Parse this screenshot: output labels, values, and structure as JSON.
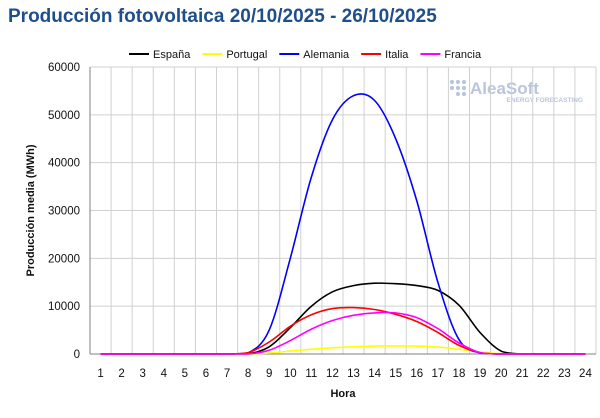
{
  "title": "Producción fotovoltaica 20/10/2025 - 26/10/2025",
  "logo": {
    "name": "AleaSoft",
    "tagline": "ENERGY FORECASTING"
  },
  "chart_data": {
    "type": "line",
    "title": "Producción fotovoltaica 20/10/2025 - 26/10/2025",
    "xlabel": "Hora",
    "ylabel": "Producción media (MWh)",
    "x": [
      1,
      2,
      3,
      4,
      5,
      6,
      7,
      8,
      9,
      10,
      11,
      12,
      13,
      14,
      15,
      16,
      17,
      18,
      19,
      20,
      21,
      22,
      23,
      24
    ],
    "ylim": [
      0,
      60000
    ],
    "yticks": [
      0,
      10000,
      20000,
      30000,
      40000,
      50000,
      60000
    ],
    "grid": true,
    "legend_position": "top",
    "series": [
      {
        "name": "España",
        "color": "#000000",
        "values": [
          0,
          0,
          0,
          0,
          0,
          0,
          0,
          50,
          1500,
          5500,
          10000,
          13000,
          14300,
          14800,
          14700,
          14300,
          13300,
          10200,
          4500,
          600,
          0,
          0,
          0,
          0
        ]
      },
      {
        "name": "Portugal",
        "color": "#ffff00",
        "values": [
          0,
          0,
          0,
          0,
          0,
          0,
          0,
          0,
          200,
          600,
          1000,
          1300,
          1500,
          1650,
          1700,
          1650,
          1450,
          1000,
          400,
          50,
          0,
          0,
          0,
          0
        ]
      },
      {
        "name": "Alemania",
        "color": "#0000ff",
        "values": [
          0,
          0,
          0,
          0,
          0,
          0,
          0,
          200,
          5000,
          20000,
          37000,
          49000,
          54000,
          53000,
          45000,
          32000,
          15000,
          3000,
          200,
          0,
          0,
          0,
          0,
          0
        ]
      },
      {
        "name": "Italia",
        "color": "#ff0000",
        "values": [
          0,
          0,
          0,
          0,
          0,
          0,
          0,
          300,
          2500,
          5800,
          8200,
          9500,
          9700,
          9300,
          8300,
          6800,
          4500,
          1800,
          300,
          0,
          0,
          0,
          0,
          0
        ]
      },
      {
        "name": "Francia",
        "color": "#ff00ff",
        "values": [
          0,
          0,
          0,
          0,
          0,
          0,
          0,
          0,
          800,
          2800,
          5200,
          7000,
          8100,
          8600,
          8600,
          7600,
          5300,
          2300,
          300,
          0,
          0,
          0,
          0,
          0
        ]
      }
    ]
  }
}
